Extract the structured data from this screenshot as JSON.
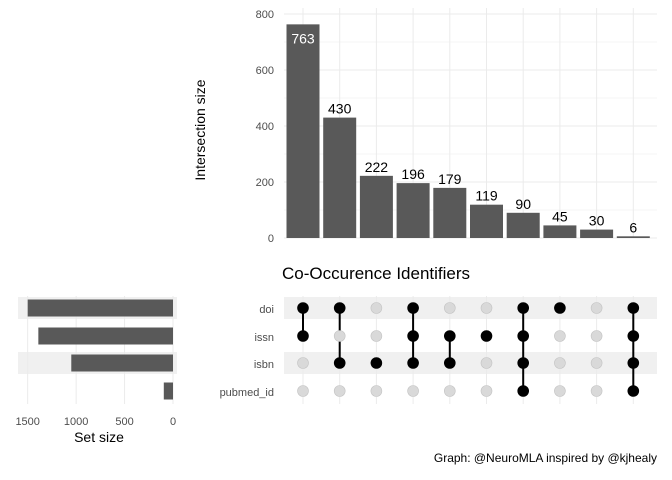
{
  "chart_data": {
    "type": "bar",
    "title": "Co-Occurence Identifiers",
    "caption": "Graph: @NeuroMLA inspired by @kjhealy",
    "ylabel": "Intersection size",
    "ylim": [
      0,
      800
    ],
    "yticks": [
      "0",
      "200",
      "400",
      "600",
      "800"
    ],
    "values": [
      763,
      430,
      222,
      196,
      179,
      119,
      90,
      45,
      30,
      6
    ],
    "value_labels": [
      "763",
      "430",
      "222",
      "196",
      "179",
      "119",
      "90",
      "45",
      "30",
      "6"
    ],
    "sets": [
      "doi",
      "issn",
      "isbn",
      "pubmed_id"
    ],
    "intersections": [
      [
        1,
        1,
        0,
        0
      ],
      [
        1,
        0,
        1,
        0
      ],
      [
        0,
        0,
        1,
        0
      ],
      [
        1,
        1,
        1,
        0
      ],
      [
        0,
        1,
        1,
        0
      ],
      [
        0,
        1,
        0,
        0
      ],
      [
        1,
        1,
        1,
        1
      ],
      [
        1,
        0,
        0,
        0
      ],
      [
        0,
        0,
        0,
        0
      ],
      [
        1,
        1,
        1,
        1
      ]
    ],
    "set_size": {
      "xlabel": "Set size",
      "values": [
        1500,
        1390,
        1050,
        95
      ],
      "xlim": [
        0,
        1600
      ],
      "xticks": [
        "1500",
        "1000",
        "500",
        "0"
      ]
    },
    "colors": {
      "bar": "#595959",
      "dot_on": "#000000",
      "dot_off": "#d9d9d9",
      "stripe": "#f0f0f0",
      "grid": "#ebebeb"
    }
  }
}
